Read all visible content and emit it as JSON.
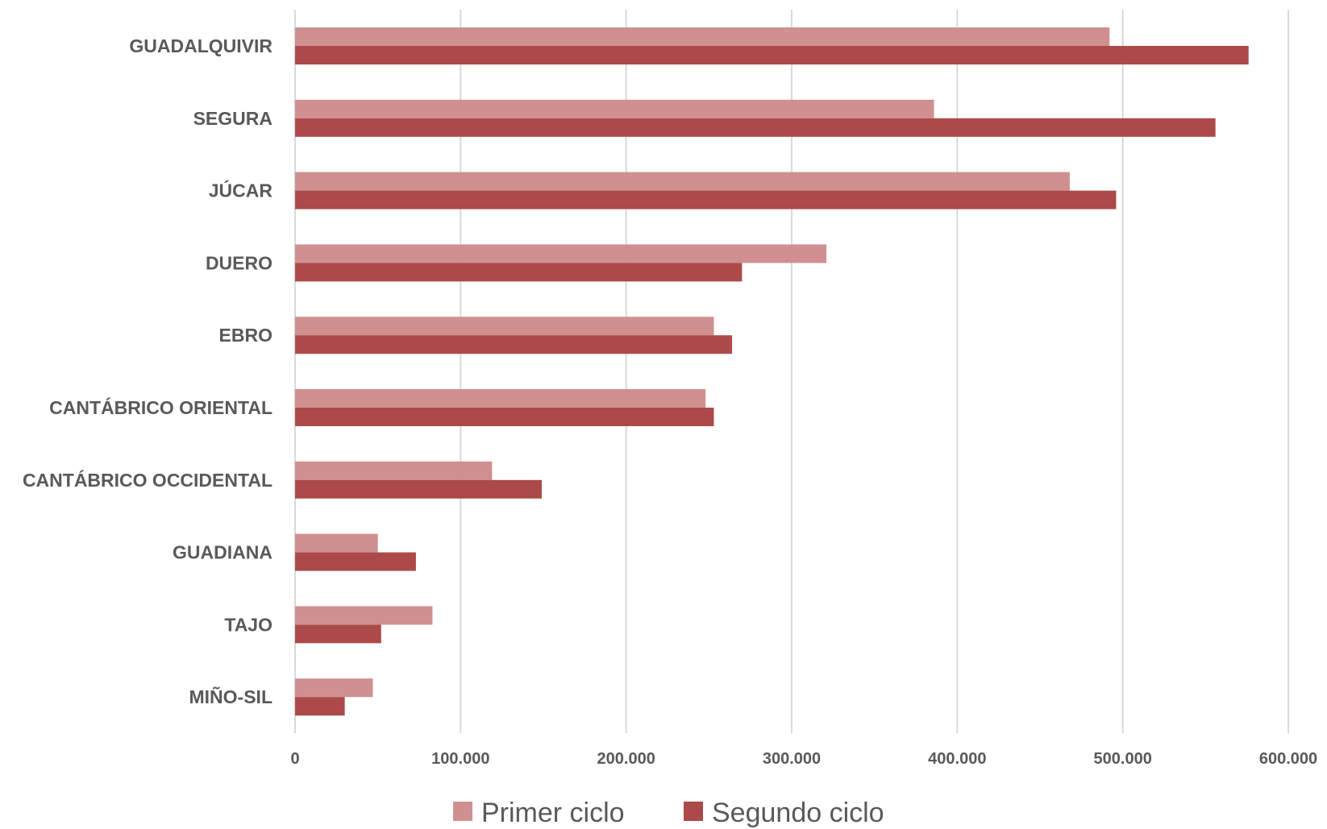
{
  "chart_data": {
    "type": "bar",
    "orientation": "horizontal",
    "title": "",
    "xlabel": "",
    "ylabel": "",
    "categories": [
      "GUADALQUIVIR",
      "SEGURA",
      "JÚCAR",
      "DUERO",
      "EBRO",
      "CANTÁBRICO ORIENTAL",
      "CANTÁBRICO OCCIDENTAL",
      "GUADIANA",
      "TAJO",
      "MIÑO-SIL"
    ],
    "series": [
      {
        "name": "Primer ciclo",
        "color": "#d09090",
        "values": [
          492000,
          386000,
          468000,
          321000,
          253000,
          248000,
          119000,
          50000,
          83000,
          47000
        ]
      },
      {
        "name": "Segundo ciclo",
        "color": "#ab4a48",
        "values": [
          576000,
          556000,
          496000,
          270000,
          264000,
          253000,
          149000,
          73000,
          52000,
          30000
        ]
      }
    ],
    "xlim": [
      0,
      600000
    ],
    "x_ticks": [
      0,
      100000,
      200000,
      300000,
      400000,
      500000,
      600000
    ],
    "x_tick_labels": [
      "0",
      "100.000",
      "200.000",
      "300.000",
      "400.000",
      "500.000",
      "600.000"
    ],
    "grid": true,
    "legend_position": "bottom"
  }
}
